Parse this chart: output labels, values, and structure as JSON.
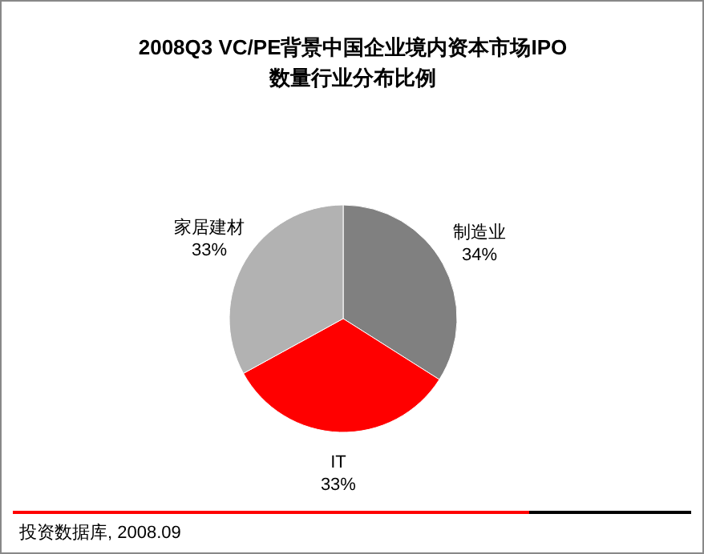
{
  "chart_data": {
    "type": "pie",
    "title": "2008Q3 VC/PE背景中国企业境内资本市场IPO\n数量行业分布比例",
    "categories": [
      "制造业",
      "IT",
      "家居建材"
    ],
    "values": [
      34,
      33,
      33
    ],
    "colors": [
      "#808080",
      "#ff0000",
      "#b2b2b2"
    ],
    "value_labels": [
      "34%",
      "33%",
      "33%"
    ],
    "annotations": [
      "投资数据库, 2008.09"
    ]
  }
}
